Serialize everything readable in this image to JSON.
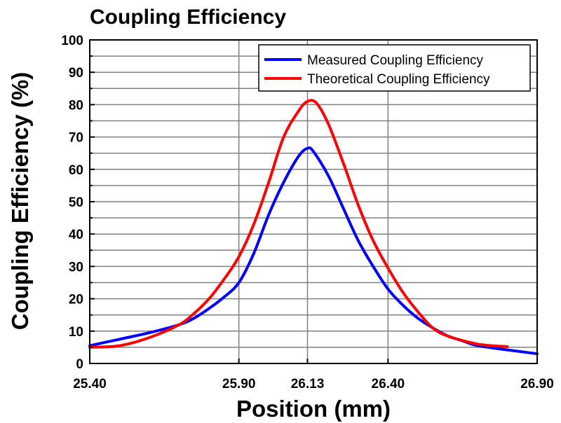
{
  "chart_data": {
    "type": "line",
    "title": "Coupling Efficiency",
    "xlabel": "Position (mm)",
    "ylabel": "Coupling Efficiency (%)",
    "xlim": [
      25.4,
      26.9
    ],
    "ylim": [
      0,
      100
    ],
    "x_ticks": [
      25.4,
      25.9,
      26.13,
      26.4,
      26.9
    ],
    "x_tick_labels": [
      "25.40",
      "25.90",
      "26.13",
      "26.40",
      "26.90"
    ],
    "y_ticks": [
      0,
      10,
      20,
      30,
      40,
      50,
      60,
      70,
      80,
      90,
      100
    ],
    "y_tick_labels": [
      "0",
      "10",
      "20",
      "30",
      "40",
      "50",
      "60",
      "70",
      "80",
      "90",
      "100"
    ],
    "grid": true,
    "legend_position": "top-right",
    "series": [
      {
        "name": "Measured Coupling Efficiency",
        "color": "#0000ff",
        "x": [
          25.4,
          25.5,
          25.6,
          25.7,
          25.75,
          25.8,
          25.85,
          25.9,
          25.95,
          26.0,
          26.05,
          26.1,
          26.13,
          26.15,
          26.2,
          26.25,
          26.3,
          26.35,
          26.4,
          26.45,
          26.5,
          26.55,
          26.6,
          26.65,
          26.7,
          26.8,
          26.9
        ],
        "y": [
          5.5,
          7.5,
          9.5,
          12,
          14,
          17,
          20.5,
          25,
          34,
          46,
          56,
          64,
          66.5,
          65.5,
          58,
          48,
          38,
          30,
          23,
          18,
          14,
          11,
          8.5,
          7,
          5.5,
          4.2,
          3
        ]
      },
      {
        "name": "Theoretical Coupling Efficiency",
        "color": "#ff0000",
        "x": [
          25.4,
          25.5,
          25.6,
          25.7,
          25.75,
          25.8,
          25.85,
          25.9,
          25.95,
          26.0,
          26.05,
          26.1,
          26.13,
          26.16,
          26.2,
          26.25,
          26.3,
          26.35,
          26.4,
          26.45,
          26.5,
          26.55,
          26.6,
          26.7,
          26.8
        ],
        "y": [
          5,
          5.5,
          8,
          12,
          15.5,
          20,
          26,
          33,
          43,
          56,
          70,
          78,
          81,
          80.5,
          74,
          62,
          49,
          38,
          29.5,
          22,
          16,
          11,
          8.5,
          6,
          5.2
        ]
      }
    ]
  }
}
